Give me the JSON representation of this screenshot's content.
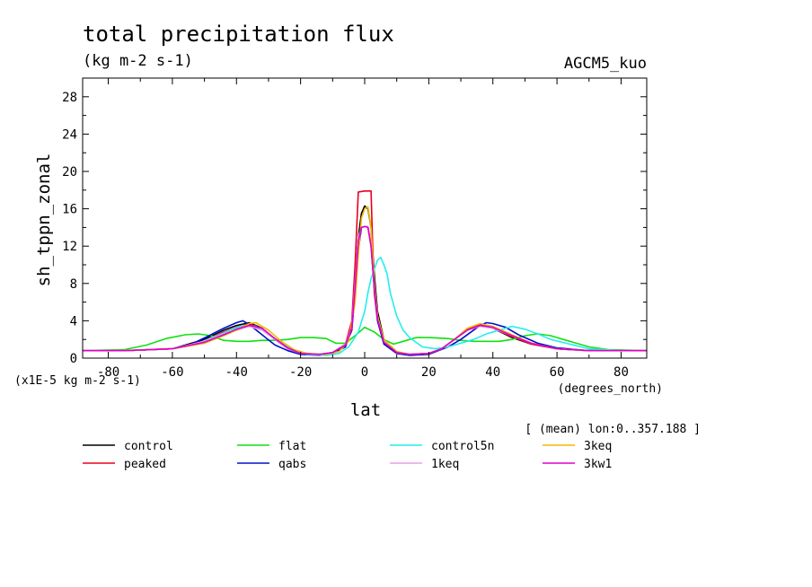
{
  "chart_data": {
    "type": "line",
    "title": "total precipitation flux",
    "subtitle": "(kg m-2 s-1)",
    "model_label": "AGCM5_kuo",
    "xlabel": "lat",
    "xunits": "(degrees_north)",
    "ylabel": "sh_tppn_zonal",
    "yscale_note": "(x1E-5 kg m-2 s-1)",
    "mean_note": "[ (mean) lon:0..357.188 ]",
    "xlim": [
      -88,
      88
    ],
    "ylim": [
      0,
      30
    ],
    "xticks": [
      -80,
      -60,
      -40,
      -20,
      0,
      20,
      40,
      60,
      80
    ],
    "xtick_labels": [
      "-80",
      "-60",
      "-40",
      "-20",
      "0",
      "20",
      "40",
      "60",
      "80"
    ],
    "yticks": [
      0,
      4,
      8,
      12,
      16,
      20,
      24,
      28
    ],
    "ytick_labels": [
      "0",
      "4",
      "8",
      "12",
      "16",
      "20",
      "24",
      "28"
    ],
    "grid": false,
    "legend_position": "bottom",
    "series": [
      {
        "name": "control",
        "color": "#000000",
        "points": [
          [
            -88,
            0.8
          ],
          [
            -75,
            0.8
          ],
          [
            -60,
            1.0
          ],
          [
            -50,
            2.0
          ],
          [
            -44,
            3.0
          ],
          [
            -40,
            3.5
          ],
          [
            -36,
            3.8
          ],
          [
            -32,
            3.2
          ],
          [
            -28,
            2.0
          ],
          [
            -24,
            1.0
          ],
          [
            -20,
            0.5
          ],
          [
            -14,
            0.4
          ],
          [
            -10,
            0.6
          ],
          [
            -6,
            1.5
          ],
          [
            -4,
            3.5
          ],
          [
            -3,
            8.0
          ],
          [
            -2,
            13.0
          ],
          [
            -1,
            15.5
          ],
          [
            0,
            16.3
          ],
          [
            1,
            16.0
          ],
          [
            2,
            14.0
          ],
          [
            3,
            9.0
          ],
          [
            4,
            5.0
          ],
          [
            6,
            2.0
          ],
          [
            10,
            0.6
          ],
          [
            14,
            0.4
          ],
          [
            20,
            0.5
          ],
          [
            24,
            1.0
          ],
          [
            28,
            2.0
          ],
          [
            32,
            3.0
          ],
          [
            36,
            3.5
          ],
          [
            40,
            3.2
          ],
          [
            46,
            2.2
          ],
          [
            52,
            1.5
          ],
          [
            60,
            1.0
          ],
          [
            70,
            0.8
          ],
          [
            88,
            0.8
          ]
        ]
      },
      {
        "name": "peaked",
        "color": "#e8001c",
        "points": [
          [
            -88,
            0.8
          ],
          [
            -75,
            0.8
          ],
          [
            -60,
            1.0
          ],
          [
            -50,
            1.8
          ],
          [
            -44,
            2.8
          ],
          [
            -40,
            3.3
          ],
          [
            -36,
            3.7
          ],
          [
            -32,
            3.1
          ],
          [
            -28,
            2.0
          ],
          [
            -24,
            1.0
          ],
          [
            -20,
            0.5
          ],
          [
            -14,
            0.4
          ],
          [
            -10,
            0.6
          ],
          [
            -6,
            1.5
          ],
          [
            -4,
            4.0
          ],
          [
            -3,
            10.0
          ],
          [
            -2,
            17.8
          ],
          [
            0,
            17.9
          ],
          [
            2,
            17.9
          ],
          [
            2.5,
            12.0
          ],
          [
            3,
            7.0
          ],
          [
            4,
            4.0
          ],
          [
            6,
            1.6
          ],
          [
            10,
            0.6
          ],
          [
            14,
            0.4
          ],
          [
            20,
            0.5
          ],
          [
            24,
            1.0
          ],
          [
            28,
            2.0
          ],
          [
            32,
            3.1
          ],
          [
            36,
            3.6
          ],
          [
            40,
            3.2
          ],
          [
            46,
            2.3
          ],
          [
            52,
            1.5
          ],
          [
            60,
            1.0
          ],
          [
            70,
            0.8
          ],
          [
            88,
            0.8
          ]
        ]
      },
      {
        "name": "flat",
        "color": "#10e010",
        "points": [
          [
            -88,
            0.8
          ],
          [
            -75,
            0.9
          ],
          [
            -68,
            1.4
          ],
          [
            -62,
            2.1
          ],
          [
            -56,
            2.5
          ],
          [
            -52,
            2.6
          ],
          [
            -48,
            2.4
          ],
          [
            -44,
            1.9
          ],
          [
            -40,
            1.8
          ],
          [
            -36,
            1.8
          ],
          [
            -32,
            1.9
          ],
          [
            -28,
            1.9
          ],
          [
            -24,
            2.0
          ],
          [
            -20,
            2.2
          ],
          [
            -16,
            2.2
          ],
          [
            -12,
            2.1
          ],
          [
            -9,
            1.6
          ],
          [
            -6,
            1.6
          ],
          [
            -3,
            2.4
          ],
          [
            0,
            3.3
          ],
          [
            3,
            2.8
          ],
          [
            6,
            2.0
          ],
          [
            9,
            1.5
          ],
          [
            12,
            1.8
          ],
          [
            16,
            2.2
          ],
          [
            20,
            2.2
          ],
          [
            26,
            2.1
          ],
          [
            30,
            1.9
          ],
          [
            34,
            1.8
          ],
          [
            38,
            1.8
          ],
          [
            42,
            1.8
          ],
          [
            46,
            2.0
          ],
          [
            50,
            2.4
          ],
          [
            54,
            2.6
          ],
          [
            58,
            2.4
          ],
          [
            64,
            1.8
          ],
          [
            70,
            1.2
          ],
          [
            76,
            0.9
          ],
          [
            88,
            0.8
          ]
        ]
      },
      {
        "name": "qabs",
        "color": "#0010cc",
        "points": [
          [
            -88,
            0.8
          ],
          [
            -75,
            0.8
          ],
          [
            -60,
            1.0
          ],
          [
            -54,
            1.5
          ],
          [
            -48,
            2.5
          ],
          [
            -44,
            3.2
          ],
          [
            -40,
            3.8
          ],
          [
            -38,
            4.0
          ],
          [
            -36,
            3.6
          ],
          [
            -32,
            2.5
          ],
          [
            -28,
            1.4
          ],
          [
            -24,
            0.8
          ],
          [
            -20,
            0.4
          ],
          [
            -14,
            0.3
          ],
          [
            -10,
            0.5
          ],
          [
            -6,
            1.2
          ],
          [
            -4,
            3.0
          ],
          [
            -3,
            7.0
          ],
          [
            -2,
            11.5
          ],
          [
            -1,
            14.0
          ],
          [
            0,
            14.1
          ],
          [
            1,
            14.1
          ],
          [
            2,
            12.0
          ],
          [
            3,
            7.5
          ],
          [
            4,
            4.0
          ],
          [
            6,
            1.5
          ],
          [
            10,
            0.5
          ],
          [
            14,
            0.3
          ],
          [
            20,
            0.4
          ],
          [
            26,
            1.2
          ],
          [
            30,
            2.0
          ],
          [
            34,
            3.0
          ],
          [
            36,
            3.5
          ],
          [
            38,
            3.8
          ],
          [
            40,
            3.7
          ],
          [
            44,
            3.3
          ],
          [
            48,
            2.5
          ],
          [
            54,
            1.6
          ],
          [
            60,
            1.1
          ],
          [
            70,
            0.8
          ],
          [
            88,
            0.8
          ]
        ]
      },
      {
        "name": "control5n",
        "color": "#22eeee",
        "points": [
          [
            -88,
            0.8
          ],
          [
            -75,
            0.8
          ],
          [
            -60,
            1.0
          ],
          [
            -52,
            1.6
          ],
          [
            -46,
            2.4
          ],
          [
            -42,
            3.0
          ],
          [
            -38,
            3.5
          ],
          [
            -34,
            3.4
          ],
          [
            -30,
            2.6
          ],
          [
            -26,
            1.6
          ],
          [
            -22,
            0.8
          ],
          [
            -18,
            0.4
          ],
          [
            -12,
            0.3
          ],
          [
            -8,
            0.5
          ],
          [
            -5,
            1.2
          ],
          [
            -2,
            2.8
          ],
          [
            0,
            5.0
          ],
          [
            1,
            7.0
          ],
          [
            2,
            8.5
          ],
          [
            3,
            9.5
          ],
          [
            4,
            10.5
          ],
          [
            5,
            10.8
          ],
          [
            6,
            10.0
          ],
          [
            7,
            9.0
          ],
          [
            8,
            7.0
          ],
          [
            10,
            4.5
          ],
          [
            12,
            3.0
          ],
          [
            14,
            2.2
          ],
          [
            18,
            1.2
          ],
          [
            22,
            1.0
          ],
          [
            26,
            1.2
          ],
          [
            30,
            1.6
          ],
          [
            34,
            2.0
          ],
          [
            38,
            2.6
          ],
          [
            42,
            3.0
          ],
          [
            46,
            3.4
          ],
          [
            50,
            3.1
          ],
          [
            54,
            2.6
          ],
          [
            58,
            2.0
          ],
          [
            64,
            1.5
          ],
          [
            70,
            1.0
          ],
          [
            80,
            0.8
          ],
          [
            88,
            0.8
          ]
        ]
      },
      {
        "name": "1keq",
        "color": "#e6a0e6",
        "points": [
          [
            -88,
            0.8
          ],
          [
            -75,
            0.8
          ],
          [
            -60,
            1.0
          ],
          [
            -50,
            1.8
          ],
          [
            -44,
            2.6
          ],
          [
            -40,
            3.0
          ],
          [
            -36,
            3.4
          ],
          [
            -32,
            3.0
          ],
          [
            -28,
            2.0
          ],
          [
            -24,
            1.0
          ],
          [
            -20,
            0.5
          ],
          [
            -14,
            0.4
          ],
          [
            -10,
            0.6
          ],
          [
            -6,
            1.5
          ],
          [
            -4,
            3.4
          ],
          [
            -3,
            8.0
          ],
          [
            -2,
            13.0
          ],
          [
            -1,
            14.0
          ],
          [
            0,
            14.1
          ],
          [
            1,
            14.1
          ],
          [
            2,
            12.5
          ],
          [
            3,
            8.0
          ],
          [
            4,
            4.5
          ],
          [
            6,
            1.8
          ],
          [
            10,
            0.6
          ],
          [
            14,
            0.4
          ],
          [
            20,
            0.5
          ],
          [
            24,
            1.0
          ],
          [
            28,
            2.0
          ],
          [
            32,
            3.0
          ],
          [
            36,
            3.4
          ],
          [
            40,
            3.2
          ],
          [
            46,
            2.4
          ],
          [
            52,
            1.6
          ],
          [
            60,
            1.0
          ],
          [
            70,
            0.8
          ],
          [
            88,
            0.8
          ]
        ]
      },
      {
        "name": "3keq",
        "color": "#f0b800",
        "points": [
          [
            -88,
            0.8
          ],
          [
            -75,
            0.8
          ],
          [
            -60,
            1.0
          ],
          [
            -50,
            1.6
          ],
          [
            -44,
            2.4
          ],
          [
            -40,
            3.0
          ],
          [
            -36,
            3.7
          ],
          [
            -34,
            3.8
          ],
          [
            -30,
            3.0
          ],
          [
            -26,
            1.8
          ],
          [
            -22,
            0.9
          ],
          [
            -18,
            0.5
          ],
          [
            -12,
            0.4
          ],
          [
            -8,
            0.7
          ],
          [
            -5,
            1.8
          ],
          [
            -3,
            6.0
          ],
          [
            -2,
            11.0
          ],
          [
            -1,
            15.0
          ],
          [
            0,
            16.0
          ],
          [
            1,
            16.2
          ],
          [
            2,
            14.0
          ],
          [
            3,
            8.0
          ],
          [
            4,
            4.5
          ],
          [
            6,
            2.0
          ],
          [
            10,
            0.7
          ],
          [
            14,
            0.4
          ],
          [
            20,
            0.5
          ],
          [
            24,
            1.0
          ],
          [
            28,
            2.0
          ],
          [
            32,
            3.2
          ],
          [
            36,
            3.7
          ],
          [
            40,
            3.4
          ],
          [
            46,
            2.5
          ],
          [
            52,
            1.6
          ],
          [
            60,
            1.0
          ],
          [
            70,
            0.8
          ],
          [
            88,
            0.8
          ]
        ]
      },
      {
        "name": "3kw1",
        "color": "#e000c8",
        "points": [
          [
            -88,
            0.8
          ],
          [
            -75,
            0.8
          ],
          [
            -60,
            1.0
          ],
          [
            -50,
            1.7
          ],
          [
            -44,
            2.5
          ],
          [
            -40,
            3.1
          ],
          [
            -36,
            3.5
          ],
          [
            -32,
            3.2
          ],
          [
            -28,
            2.1
          ],
          [
            -24,
            1.1
          ],
          [
            -20,
            0.5
          ],
          [
            -14,
            0.4
          ],
          [
            -10,
            0.6
          ],
          [
            -6,
            1.4
          ],
          [
            -4,
            3.2
          ],
          [
            -3,
            7.5
          ],
          [
            -2,
            12.5
          ],
          [
            -1,
            14.0
          ],
          [
            0,
            14.1
          ],
          [
            1,
            14.0
          ],
          [
            2,
            12.0
          ],
          [
            3,
            7.5
          ],
          [
            4,
            4.2
          ],
          [
            6,
            1.7
          ],
          [
            10,
            0.6
          ],
          [
            14,
            0.4
          ],
          [
            20,
            0.5
          ],
          [
            24,
            1.0
          ],
          [
            28,
            2.0
          ],
          [
            32,
            3.0
          ],
          [
            36,
            3.5
          ],
          [
            40,
            3.3
          ],
          [
            46,
            2.4
          ],
          [
            52,
            1.6
          ],
          [
            60,
            1.0
          ],
          [
            70,
            0.8
          ],
          [
            88,
            0.8
          ]
        ]
      }
    ]
  }
}
